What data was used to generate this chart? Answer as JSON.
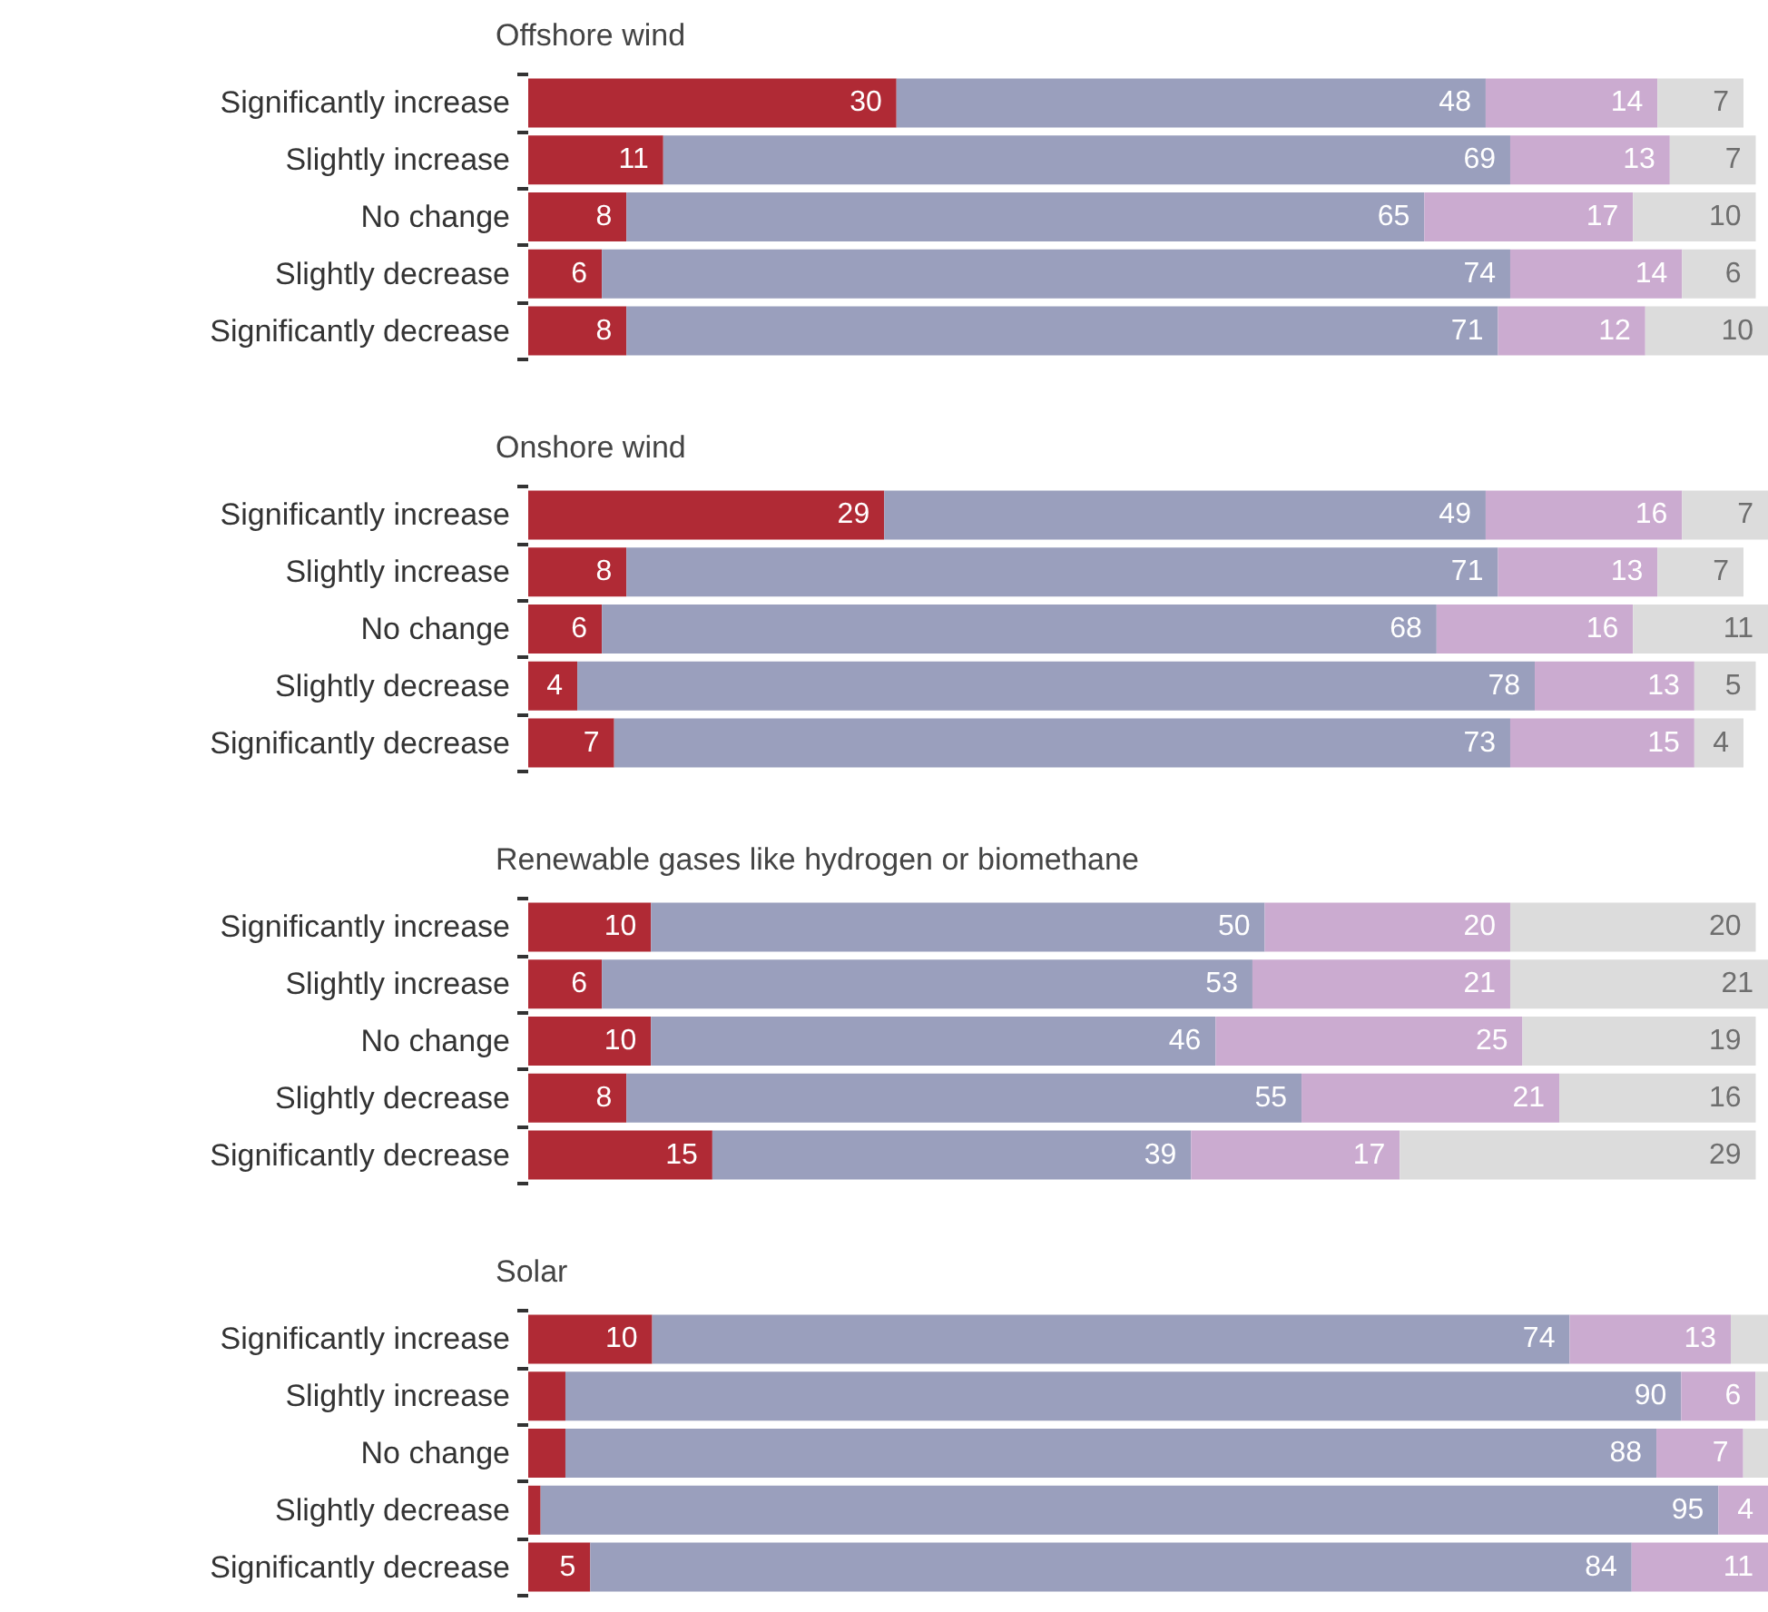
{
  "chart_data": [
    {
      "type": "bar",
      "orientation": "horizontal",
      "stacked": true,
      "title": "Offshore wind",
      "categories": [
        "Significantly increase",
        "Slightly increase",
        "No change",
        "Slightly decrease",
        "Significantly decrease"
      ],
      "xlim": [
        0,
        101
      ],
      "tick_labels": "y",
      "grid": false,
      "series": [
        {
          "color": "#b02a35",
          "values": [
            30,
            11,
            8,
            6,
            8
          ],
          "value_labels": [
            "30",
            "11",
            "8",
            "6",
            "8"
          ]
        },
        {
          "color": "#9a9fbd",
          "values": [
            48,
            69,
            65,
            74,
            71
          ],
          "value_labels": [
            "48",
            "69",
            "65",
            "74",
            "71"
          ]
        },
        {
          "color": "#cbabd0",
          "values": [
            14,
            13,
            17,
            14,
            12
          ],
          "value_labels": [
            "14",
            "13",
            "17",
            "14",
            "12"
          ]
        },
        {
          "color": "#dcdcdc",
          "values": [
            7,
            7,
            10,
            6,
            10
          ],
          "value_labels": [
            "7",
            "7",
            "10",
            "6",
            "10"
          ]
        }
      ]
    },
    {
      "type": "bar",
      "orientation": "horizontal",
      "stacked": true,
      "title": "Onshore wind",
      "categories": [
        "Significantly increase",
        "Slightly increase",
        "No change",
        "Slightly decrease",
        "Significantly decrease"
      ],
      "xlim": [
        0,
        101
      ],
      "tick_labels": "y",
      "grid": false,
      "series": [
        {
          "color": "#b02a35",
          "values": [
            29,
            8,
            6,
            4,
            7
          ],
          "value_labels": [
            "29",
            "8",
            "6",
            "4",
            "7"
          ]
        },
        {
          "color": "#9a9fbd",
          "values": [
            49,
            71,
            68,
            78,
            73
          ],
          "value_labels": [
            "49",
            "71",
            "68",
            "78",
            "73"
          ]
        },
        {
          "color": "#cbabd0",
          "values": [
            16,
            13,
            16,
            13,
            15
          ],
          "value_labels": [
            "16",
            "13",
            "16",
            "13",
            "15"
          ]
        },
        {
          "color": "#dcdcdc",
          "values": [
            7,
            7,
            11,
            5,
            4
          ],
          "value_labels": [
            "7",
            "7",
            "11",
            "5",
            "4"
          ]
        }
      ]
    },
    {
      "type": "bar",
      "orientation": "horizontal",
      "stacked": true,
      "title": "Renewable gases like hydrogen or biomethane",
      "categories": [
        "Significantly increase",
        "Slightly increase",
        "No change",
        "Slightly decrease",
        "Significantly decrease"
      ],
      "xlim": [
        0,
        101
      ],
      "tick_labels": "y",
      "grid": false,
      "series": [
        {
          "color": "#b02a35",
          "values": [
            10,
            6,
            10,
            8,
            15
          ],
          "value_labels": [
            "10",
            "6",
            "10",
            "8",
            "15"
          ]
        },
        {
          "color": "#9a9fbd",
          "values": [
            50,
            53,
            46,
            55,
            39
          ],
          "value_labels": [
            "50",
            "53",
            "46",
            "55",
            "39"
          ]
        },
        {
          "color": "#cbabd0",
          "values": [
            20,
            21,
            25,
            21,
            17
          ],
          "value_labels": [
            "20",
            "21",
            "25",
            "21",
            "17"
          ]
        },
        {
          "color": "#dcdcdc",
          "values": [
            20,
            21,
            19,
            16,
            29
          ],
          "value_labels": [
            "20",
            "21",
            "19",
            "16",
            "29"
          ]
        }
      ]
    },
    {
      "type": "bar",
      "orientation": "horizontal",
      "stacked": true,
      "title": "Solar",
      "categories": [
        "Significantly increase",
        "Slightly increase",
        "No change",
        "Slightly decrease",
        "Significantly decrease"
      ],
      "tick_labels": "y",
      "grid": false,
      "series": [
        {
          "color": "#b02a35",
          "values": [
            10,
            3,
            3,
            1,
            5
          ],
          "value_labels": [
            "10",
            null,
            null,
            null,
            "5"
          ]
        },
        {
          "color": "#9a9fbd",
          "values": [
            74,
            90,
            88,
            95,
            84
          ],
          "value_labels": [
            "74",
            "90",
            "88",
            "95",
            "84"
          ]
        },
        {
          "color": "#cbabd0",
          "values": [
            13,
            6,
            7,
            4,
            11
          ],
          "value_labels": [
            "13",
            "6",
            "7",
            "4",
            "11"
          ]
        },
        {
          "color": "#dcdcdc",
          "values": [
            3,
            1,
            2,
            0,
            0
          ],
          "value_labels": [
            null,
            null,
            null,
            null,
            null
          ]
        }
      ]
    }
  ]
}
